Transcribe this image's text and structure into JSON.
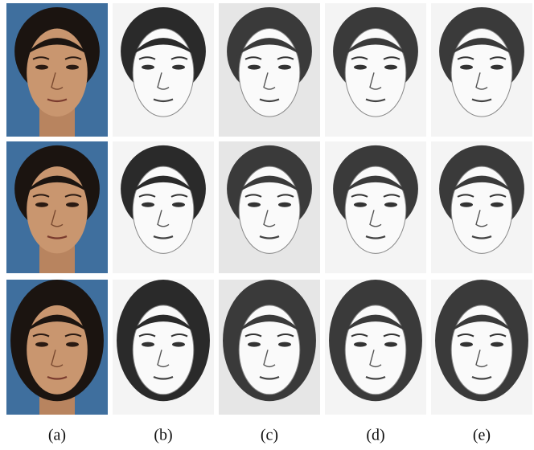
{
  "figure": {
    "column_labels": [
      "(a)",
      "(b)",
      "(c)",
      "(d)",
      "(e)"
    ]
  }
}
